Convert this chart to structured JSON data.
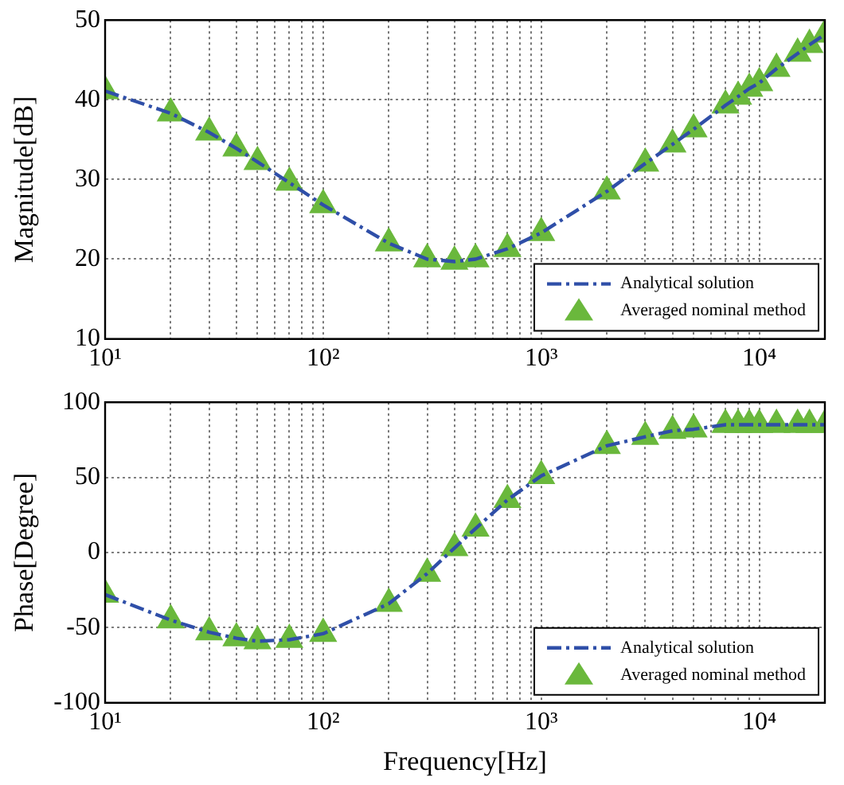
{
  "chart_data": [
    {
      "type": "line",
      "ylabel": "Magnitude[dB]",
      "log": "x",
      "grid": true,
      "legend": "bottom right",
      "x": [
        10,
        20,
        30,
        40,
        50,
        70,
        100,
        200,
        300,
        400,
        500,
        700,
        1000,
        2000,
        3000,
        4000,
        5000,
        7000,
        8000,
        9000,
        10000,
        12000,
        15000,
        17000,
        20000
      ],
      "xlim": [
        10,
        20000
      ],
      "xticks": [
        {
          "value": 10,
          "label": "10¹"
        },
        {
          "value": 20,
          "label": null
        },
        {
          "value": 30,
          "label": null
        },
        {
          "value": 40,
          "label": null
        },
        {
          "value": 50,
          "label": null
        },
        {
          "value": 60,
          "label": null
        },
        {
          "value": 70,
          "label": null
        },
        {
          "value": 80,
          "label": null
        },
        {
          "value": 90,
          "label": null
        },
        {
          "value": 100,
          "label": "10²"
        },
        {
          "value": 200,
          "label": null
        },
        {
          "value": 300,
          "label": null
        },
        {
          "value": 400,
          "label": null
        },
        {
          "value": 500,
          "label": null
        },
        {
          "value": 600,
          "label": null
        },
        {
          "value": 700,
          "label": null
        },
        {
          "value": 800,
          "label": null
        },
        {
          "value": 900,
          "label": null
        },
        {
          "value": 1000,
          "label": "10³"
        },
        {
          "value": 2000,
          "label": null
        },
        {
          "value": 3000,
          "label": null
        },
        {
          "value": 4000,
          "label": null
        },
        {
          "value": 5000,
          "label": null
        },
        {
          "value": 6000,
          "label": null
        },
        {
          "value": 7000,
          "label": null
        },
        {
          "value": 8000,
          "label": null
        },
        {
          "value": 9000,
          "label": null
        },
        {
          "value": 10000,
          "label": "10⁴"
        }
      ],
      "ylim": [
        10,
        50
      ],
      "yticks": [
        10,
        20,
        30,
        40,
        50
      ],
      "series": [
        {
          "name": "Analytical solution",
          "type": "line",
          "color": "#2f4fa8",
          "marker": "none",
          "line_style": "dashdot",
          "values": [
            41.1,
            38.3,
            35.9,
            33.9,
            32.2,
            29.6,
            26.8,
            22.0,
            20.0,
            19.7,
            20.0,
            21.3,
            23.3,
            28.5,
            32.0,
            34.4,
            36.3,
            39.3,
            40.4,
            41.4,
            42.1,
            43.9,
            45.8,
            46.9,
            48.2
          ]
        },
        {
          "name": "Averaged nominal method",
          "type": "scatter",
          "color": "#6ab83c",
          "marker": "triangle",
          "values": [
            41.1,
            38.3,
            35.9,
            33.9,
            32.2,
            29.6,
            26.8,
            22.0,
            20.0,
            19.7,
            20.0,
            21.3,
            23.3,
            28.5,
            32.0,
            34.4,
            36.3,
            39.3,
            40.4,
            41.4,
            42.1,
            43.9,
            45.8,
            46.9,
            48.2
          ]
        }
      ]
    },
    {
      "type": "line",
      "ylabel": "Phase[Degree]",
      "xlabel": "Frequency[Hz]",
      "log": "x",
      "grid": true,
      "legend": "bottom right",
      "x": [
        10,
        20,
        30,
        40,
        50,
        70,
        100,
        200,
        300,
        400,
        500,
        700,
        1000,
        2000,
        3000,
        4000,
        5000,
        7000,
        8000,
        9000,
        10000,
        12000,
        15000,
        17000,
        20000
      ],
      "xlim": [
        10,
        20000
      ],
      "xticks": [
        {
          "value": 10,
          "label": "10¹"
        },
        {
          "value": 20,
          "label": null
        },
        {
          "value": 30,
          "label": null
        },
        {
          "value": 40,
          "label": null
        },
        {
          "value": 50,
          "label": null
        },
        {
          "value": 60,
          "label": null
        },
        {
          "value": 70,
          "label": null
        },
        {
          "value": 80,
          "label": null
        },
        {
          "value": 90,
          "label": null
        },
        {
          "value": 100,
          "label": "10²"
        },
        {
          "value": 200,
          "label": null
        },
        {
          "value": 300,
          "label": null
        },
        {
          "value": 400,
          "label": null
        },
        {
          "value": 500,
          "label": null
        },
        {
          "value": 600,
          "label": null
        },
        {
          "value": 700,
          "label": null
        },
        {
          "value": 800,
          "label": null
        },
        {
          "value": 900,
          "label": null
        },
        {
          "value": 1000,
          "label": "10³"
        },
        {
          "value": 2000,
          "label": null
        },
        {
          "value": 3000,
          "label": null
        },
        {
          "value": 4000,
          "label": null
        },
        {
          "value": 5000,
          "label": null
        },
        {
          "value": 6000,
          "label": null
        },
        {
          "value": 7000,
          "label": null
        },
        {
          "value": 8000,
          "label": null
        },
        {
          "value": 9000,
          "label": null
        },
        {
          "value": 10000,
          "label": "10⁴"
        }
      ],
      "ylim": [
        -100,
        100
      ],
      "yticks": [
        -100,
        -50,
        0,
        50,
        100
      ],
      "series": [
        {
          "name": "Analytical solution",
          "type": "line",
          "color": "#2f4fa8",
          "marker": "none",
          "line_style": "dashdot",
          "values": [
            -28,
            -45,
            -53,
            -57,
            -59,
            -58,
            -54,
            -34,
            -14,
            3,
            16,
            35,
            51,
            71,
            77,
            81,
            82,
            85,
            85,
            85,
            85,
            85,
            85,
            85,
            85
          ]
        },
        {
          "name": "Averaged nominal method",
          "type": "scatter",
          "color": "#6ab83c",
          "marker": "triangle",
          "values": [
            -28,
            -45,
            -53,
            -57,
            -59,
            -58,
            -54,
            -34,
            -14,
            3,
            16,
            35,
            51,
            71,
            77,
            81,
            82,
            85,
            85,
            85,
            85,
            85,
            85,
            85,
            85
          ]
        }
      ]
    }
  ]
}
